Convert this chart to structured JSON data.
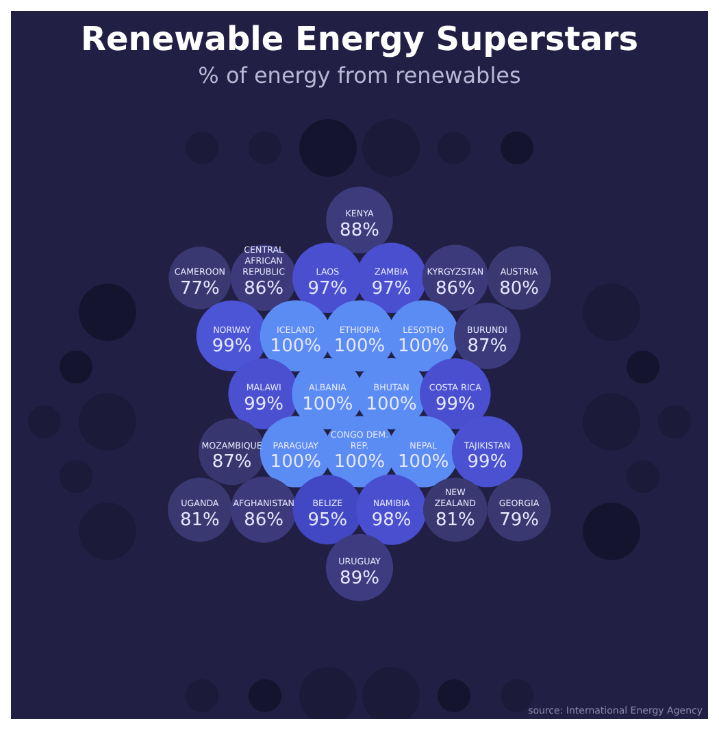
{
  "chart_data": {
    "type": "other",
    "title": "Renewable Energy Superstars",
    "subtitle": "% of energy from renewables",
    "categories": [
      "KENYA",
      "CAMEROON",
      "CENTRAL AFRICAN REPUBLIC",
      "LAOS",
      "ZAMBIA",
      "KYRGYZSTAN",
      "AUSTRIA",
      "NORWAY",
      "ICELAND",
      "ETHIOPIA",
      "LESOTHO",
      "BURUNDI",
      "MALAWI",
      "ALBANIA",
      "BHUTAN",
      "COSTA RICA",
      "MOZAMBIQUE",
      "PARAGUAY",
      "CONGO DEM. REP.",
      "NEPAL",
      "TAJIKISTAN",
      "UGANDA",
      "AFGHANISTAN",
      "BELIZE",
      "NAMIBIA",
      "NEW ZEALAND",
      "GEORGIA",
      "URUGUAY"
    ],
    "values": [
      88,
      77,
      86,
      97,
      97,
      86,
      80,
      99,
      100,
      100,
      100,
      87,
      99,
      100,
      100,
      99,
      87,
      100,
      100,
      100,
      99,
      81,
      86,
      95,
      98,
      81,
      79,
      89
    ],
    "value_labels": [
      "88%",
      "77%",
      "86%",
      "97%",
      "97%",
      "86%",
      "80%",
      "99%",
      "100%",
      "100%",
      "100%",
      "87%",
      "99%",
      "100%",
      "100%",
      "99%",
      "87%",
      "100%",
      "100%",
      "100%",
      "99%",
      "81%",
      "86%",
      "95%",
      "98%",
      "81%",
      "79%",
      "89%"
    ],
    "colors": [
      "#3c3b7c",
      "#3a3870",
      "#3c3a7a",
      "#4a4fd0",
      "#4a4fd0",
      "#3c3a7a",
      "#3a3870",
      "#4b55d6",
      "#5b8cf4",
      "#5b8cf4",
      "#5b8cf4",
      "#3b3a7a",
      "#4a50d0",
      "#5b8cf4",
      "#5b8cf4",
      "#4a4fd0",
      "#38366e",
      "#5b8cf4",
      "#5b8cf4",
      "#5b8cf4",
      "#4a52d2",
      "#3a3870",
      "#3c3a7a",
      "#4248c4",
      "#4a4fd0",
      "#3a3870",
      "#3a3870",
      "#3d3c80"
    ],
    "annotations": [
      "source: International Energy Agency"
    ]
  }
}
